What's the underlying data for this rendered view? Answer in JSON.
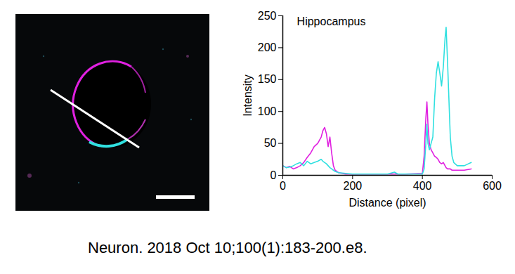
{
  "chart_data": {
    "type": "line",
    "title": "Hippocampus",
    "x_label": "Distance (pixel)",
    "y_label": "Intensity",
    "x": [
      0,
      10,
      20,
      30,
      40,
      50,
      60,
      70,
      80,
      90,
      100,
      110,
      115,
      120,
      125,
      130,
      135,
      140,
      145,
      150,
      160,
      180,
      200,
      250,
      300,
      320,
      330,
      350,
      400,
      405,
      410,
      413,
      416,
      420,
      425,
      430,
      435,
      440,
      445,
      450,
      455,
      460,
      465,
      468,
      472,
      476,
      480,
      485,
      490,
      500,
      520,
      540
    ],
    "series": [
      {
        "color": "#e020e0",
        "values": [
          15,
          12,
          14,
          10,
          12,
          15,
          20,
          28,
          35,
          45,
          50,
          60,
          70,
          75,
          65,
          45,
          60,
          35,
          15,
          8,
          4,
          2,
          2,
          2,
          2,
          2,
          2,
          2,
          3,
          30,
          90,
          115,
          80,
          50,
          40,
          35,
          30,
          28,
          25,
          20,
          18,
          20,
          15,
          12,
          10,
          10,
          10,
          8,
          8,
          8,
          8,
          10
        ]
      },
      {
        "color": "#30e0e0",
        "values": [
          15,
          12,
          13,
          15,
          18,
          20,
          15,
          22,
          18,
          20,
          22,
          25,
          22,
          20,
          18,
          15,
          12,
          10,
          8,
          6,
          4,
          3,
          2,
          2,
          2,
          5,
          2,
          2,
          2,
          10,
          50,
          80,
          50,
          40,
          50,
          60,
          120,
          160,
          178,
          160,
          140,
          170,
          215,
          232,
          180,
          120,
          60,
          30,
          20,
          15,
          15,
          20
        ]
      }
    ],
    "xlim": [
      0,
      600
    ],
    "xticks": [
      0,
      200,
      400,
      600
    ],
    "ylim": [
      0,
      250
    ],
    "yticks": [
      0,
      50,
      100,
      150,
      200,
      250
    ],
    "grid": false
  },
  "caption": "Neuron. 2018 Oct 10;100(1):183-200.e8."
}
